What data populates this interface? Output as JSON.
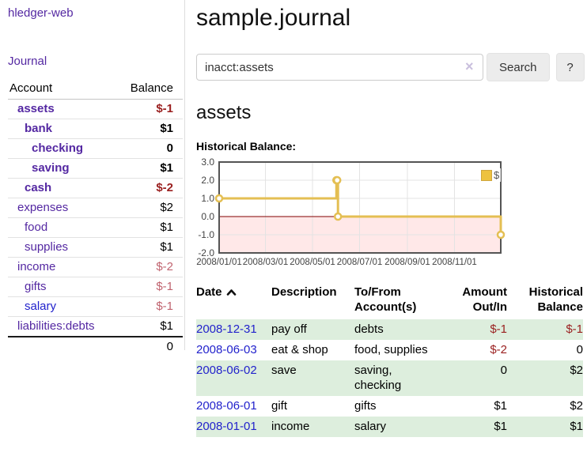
{
  "sidebar": {
    "brand": "hledger-web",
    "nav": {
      "journal": "Journal"
    },
    "accounts_table": {
      "headers": {
        "account": "Account",
        "balance": "Balance"
      },
      "rows": [
        {
          "name": "assets",
          "balance": "$-1",
          "indent": 1,
          "bold": true
        },
        {
          "name": "bank",
          "balance": "$1",
          "indent": 2,
          "bold": true
        },
        {
          "name": "checking",
          "balance": "0",
          "indent": 3,
          "bold": true
        },
        {
          "name": "saving",
          "balance": "$1",
          "indent": 3,
          "bold": true
        },
        {
          "name": "cash",
          "balance": "$-2",
          "indent": 2,
          "bold": true
        },
        {
          "name": "expenses",
          "balance": "$2",
          "indent": 1
        },
        {
          "name": "food",
          "balance": "$1",
          "indent": 2
        },
        {
          "name": "supplies",
          "balance": "$1",
          "indent": 2
        },
        {
          "name": "income",
          "balance": "$-2",
          "indent": 1,
          "muted": true
        },
        {
          "name": "gifts",
          "balance": "$-1",
          "indent": 2,
          "muted": true
        },
        {
          "name": "salary",
          "balance": "$-1",
          "indent": 2,
          "muted": true,
          "link_color": "blue"
        },
        {
          "name": "liabilities:debts",
          "balance": "$1",
          "indent": 1
        }
      ],
      "total": "0"
    }
  },
  "main": {
    "title": "sample.journal",
    "search": {
      "value": "inacct:assets",
      "clear_glyph": "×",
      "button_label": "Search",
      "help_label": "?"
    },
    "section_title": "assets",
    "chart_label": "Historical Balance:",
    "transactions": {
      "headers": [
        {
          "line1": "Date"
        },
        {
          "line1": "Description"
        },
        {
          "line1": "To/From",
          "line2": "Account(s)"
        },
        {
          "line1": "Amount",
          "line2": "Out/In"
        },
        {
          "line1": "Historical",
          "line2": "Balance"
        }
      ],
      "rows": [
        {
          "date": "2008-12-31",
          "description": "pay off",
          "accounts": "debts",
          "amount": "$-1",
          "balance": "$-1"
        },
        {
          "date": "2008-06-03",
          "description": "eat & shop",
          "accounts": "food, supplies",
          "amount": "$-2",
          "balance": "0"
        },
        {
          "date": "2008-06-02",
          "description": "save",
          "accounts": "saving,\nchecking",
          "amount": "0",
          "balance": "$2"
        },
        {
          "date": "2008-06-01",
          "description": "gift",
          "accounts": "gifts",
          "amount": "$1",
          "balance": "$2"
        },
        {
          "date": "2008-01-01",
          "description": "income",
          "accounts": "salary",
          "amount": "$1",
          "balance": "$1"
        }
      ]
    }
  },
  "chart_data": {
    "type": "line",
    "title": "Historical Balance",
    "step": true,
    "x": [
      "2008-01-01",
      "2008-06-01",
      "2008-06-02",
      "2008-06-03",
      "2008-12-31"
    ],
    "series": [
      {
        "name": "$",
        "values": [
          1,
          2,
          2,
          0,
          -1
        ]
      }
    ],
    "xlim": [
      "2008-01-01",
      "2008-12-31"
    ],
    "ylim": [
      -2,
      3
    ],
    "yticks": [
      3.0,
      2.0,
      1.0,
      0.0,
      -1.0,
      -2.0
    ],
    "xticks": [
      "2008/01/01",
      "2008/03/01",
      "2008/05/01",
      "2008/07/01",
      "2008/09/01",
      "2008/11/01"
    ],
    "legend": {
      "label": "$",
      "position": "top-right"
    },
    "grid": true,
    "negative_zone": true
  },
  "colors": {
    "link_purple": "#5428a2",
    "link_blue": "#2222cc",
    "negative_red": "#9a1f1f",
    "negative_soft": "#c0636f",
    "row_stripe_green": "#ddeedd",
    "chart_line_gold": "#e4bf53",
    "legend_gold": "#edc240",
    "zero_line": "#800000",
    "negative_zone_pink": "#f9dbdb",
    "plot_border": "#545454",
    "button_gray": "#ececec"
  }
}
